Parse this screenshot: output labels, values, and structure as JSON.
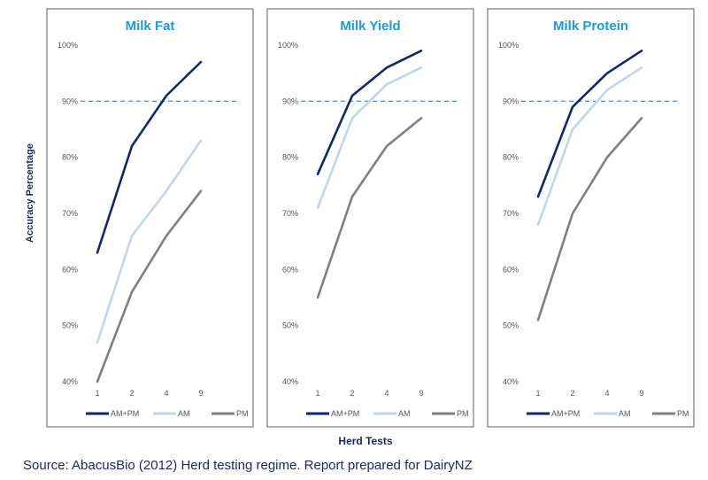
{
  "colors": {
    "am_pm": "#0e2a66",
    "am": "#bdd7ee",
    "pm": "#7f7f7f",
    "threshold": "#4aa3c9",
    "title": "#1f9ad6",
    "frame": "#777777",
    "axis_text": "#555555",
    "label_text": "#1a2a5a"
  },
  "y_axis_label": "Accuracy Percentage",
  "x_axis_label": "Herd Tests",
  "source": "Source: AbacusBio (2012) Herd testing regime. Report prepared for DairyNZ",
  "chart_data": [
    {
      "type": "line",
      "title": "Milk Fat",
      "categories": [
        "1",
        "2",
        "4",
        "9"
      ],
      "ylim": [
        40,
        100
      ],
      "yticks": [
        "40%",
        "50%",
        "60%",
        "70%",
        "80%",
        "90%",
        "100%"
      ],
      "threshold": 90,
      "series": [
        {
          "name": "AM+PM",
          "values": [
            63,
            82,
            91,
            97
          ]
        },
        {
          "name": "AM",
          "values": [
            47,
            66,
            74,
            83
          ]
        },
        {
          "name": "PM",
          "values": [
            40,
            56,
            66,
            74
          ]
        }
      ]
    },
    {
      "type": "line",
      "title": "Milk Yield",
      "categories": [
        "1",
        "2",
        "4",
        "9"
      ],
      "ylim": [
        40,
        100
      ],
      "yticks": [
        "40%",
        "50%",
        "60%",
        "70%",
        "80%",
        "90%",
        "100%"
      ],
      "threshold": 90,
      "series": [
        {
          "name": "AM+PM",
          "values": [
            77,
            91,
            96,
            99
          ]
        },
        {
          "name": "AM",
          "values": [
            71,
            87,
            93,
            96
          ]
        },
        {
          "name": "PM",
          "values": [
            55,
            73,
            82,
            87
          ]
        }
      ]
    },
    {
      "type": "line",
      "title": "Milk Protein",
      "categories": [
        "1",
        "2",
        "4",
        "9"
      ],
      "ylim": [
        40,
        100
      ],
      "yticks": [
        "40%",
        "50%",
        "60%",
        "70%",
        "80%",
        "90%",
        "100%"
      ],
      "threshold": 90,
      "series": [
        {
          "name": "AM+PM",
          "values": [
            73,
            89,
            95,
            99
          ]
        },
        {
          "name": "AM",
          "values": [
            68,
            85,
            92,
            96
          ]
        },
        {
          "name": "PM",
          "values": [
            51,
            70,
            80,
            87
          ]
        }
      ]
    }
  ]
}
